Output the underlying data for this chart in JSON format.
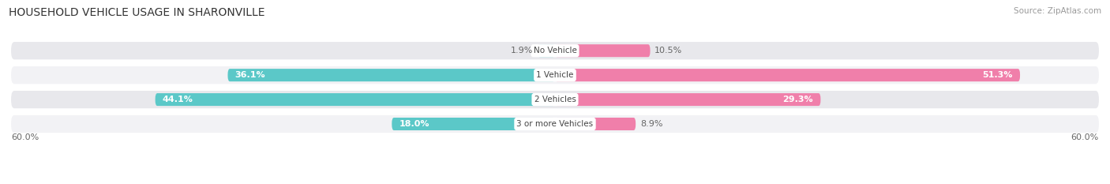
{
  "title": "HOUSEHOLD VEHICLE USAGE IN SHARONVILLE",
  "source": "Source: ZipAtlas.com",
  "categories": [
    "No Vehicle",
    "1 Vehicle",
    "2 Vehicles",
    "3 or more Vehicles"
  ],
  "owner_values": [
    1.9,
    36.1,
    44.1,
    18.0
  ],
  "renter_values": [
    10.5,
    51.3,
    29.3,
    8.9
  ],
  "owner_color": "#5bc8c8",
  "renter_color": "#f07faa",
  "owner_color_light": "#a8e0e0",
  "renter_color_light": "#f5aac5",
  "row_bg_color_dark": "#e8e8ec",
  "row_bg_color_light": "#f2f2f5",
  "axis_max": 60.0,
  "axis_label_left": "60.0%",
  "axis_label_right": "60.0%",
  "title_fontsize": 10,
  "source_fontsize": 7.5,
  "label_fontsize": 8,
  "category_fontsize": 7.5,
  "axis_fontsize": 8,
  "background_color": "#ffffff"
}
